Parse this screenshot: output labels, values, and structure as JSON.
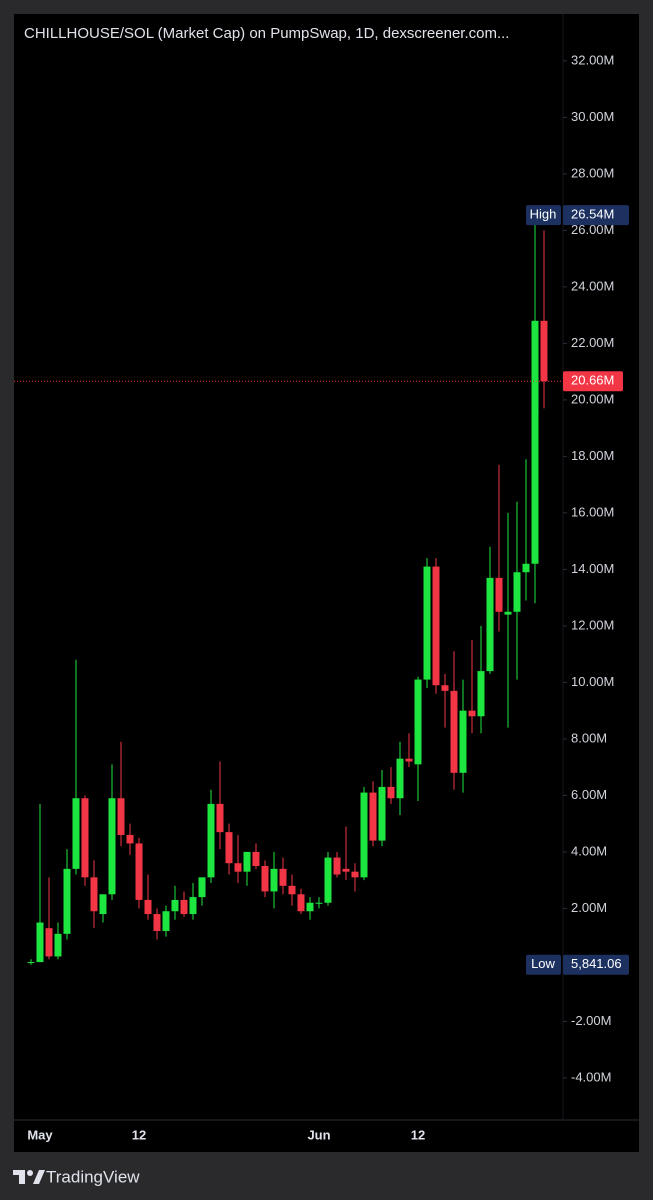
{
  "chart_data": {
    "type": "candlestick",
    "title": "CHILLHOUSE/SOL (Market Cap) on PumpSwap, 1D, dexscreener.com...",
    "categories": [
      null,
      "May",
      null,
      null,
      null,
      null,
      null,
      null,
      null,
      null,
      null,
      null,
      "12",
      null,
      null,
      null,
      null,
      null,
      null,
      null,
      null,
      null,
      null,
      null,
      null,
      null,
      null,
      null,
      null,
      null,
      null,
      null,
      "Jun",
      null,
      null,
      null,
      null,
      null,
      null,
      null,
      null,
      null,
      null,
      "12",
      null,
      null,
      null,
      null,
      null,
      null,
      null,
      null,
      null,
      null,
      null,
      null,
      null,
      null
    ],
    "open": [
      100000,
      100000,
      1300000,
      300000,
      1100000,
      3400000,
      5900000,
      3100000,
      1800000,
      2500000,
      5900000,
      4600000,
      4300000,
      2300000,
      1800000,
      1200000,
      1900000,
      2300000,
      1800000,
      2400000,
      3100000,
      5700000,
      4700000,
      3600000,
      3300000,
      4000000,
      3500000,
      2600000,
      3400000,
      2800000,
      2500000,
      1900000,
      2200000,
      2200000,
      3800000,
      3400000,
      3300000,
      3100000,
      6100000,
      4400000,
      6300000,
      5900000,
      7300000,
      7100000,
      10100000,
      14100000,
      9900000,
      9700000,
      6800000,
      9000000,
      8800000,
      10400000,
      13700000,
      12400000,
      12500000,
      13900000,
      14200000,
      22800000
    ],
    "high": [
      200000,
      5700000,
      3100000,
      1500000,
      4100000,
      10800000,
      6000000,
      3700000,
      2400000,
      7100000,
      7900000,
      5000000,
      4500000,
      3200000,
      2000000,
      2100000,
      2800000,
      2600000,
      2900000,
      3100000,
      6200000,
      7200000,
      5000000,
      4600000,
      4000000,
      4300000,
      3700000,
      4000000,
      3800000,
      3200000,
      2700000,
      2400000,
      2400000,
      4000000,
      4000000,
      4900000,
      3600000,
      6300000,
      6500000,
      6900000,
      7000000,
      7900000,
      8200000,
      10200000,
      14400000,
      14400000,
      10300000,
      11100000,
      10100000,
      11500000,
      12000000,
      14800000,
      17700000,
      16000000,
      16400000,
      17900000,
      26540000,
      26000000
    ],
    "low": [
      5841.06,
      100000,
      200000,
      200000,
      900000,
      3200000,
      2800000,
      1300000,
      1500000,
      2300000,
      4200000,
      3900000,
      2000000,
      1600000,
      900000,
      1000000,
      1600000,
      1700000,
      1600000,
      2100000,
      2900000,
      4100000,
      3200000,
      2900000,
      2800000,
      3400000,
      2400000,
      2000000,
      2500000,
      2100000,
      1800000,
      1600000,
      2000000,
      2100000,
      3100000,
      3000000,
      2600000,
      3000000,
      4200000,
      4200000,
      5700000,
      5300000,
      7000000,
      5800000,
      9800000,
      9600000,
      8400000,
      6200000,
      6100000,
      8200000,
      8200000,
      10300000,
      11800000,
      8400000,
      10100000,
      12900000,
      12800000,
      19700000
    ],
    "close": [
      100000,
      1500000,
      300000,
      1100000,
      3400000,
      5900000,
      3100000,
      1900000,
      2500000,
      5900000,
      4600000,
      4300000,
      2300000,
      1800000,
      1200000,
      1900000,
      2300000,
      1800000,
      2400000,
      3100000,
      5700000,
      4700000,
      3600000,
      3300000,
      4000000,
      3500000,
      2600000,
      3400000,
      2800000,
      2500000,
      1900000,
      2200000,
      2200000,
      3800000,
      3200000,
      3300000,
      3100000,
      6100000,
      4400000,
      6300000,
      5900000,
      7300000,
      7200000,
      10100000,
      14100000,
      9900000,
      9700000,
      6800000,
      9000000,
      8800000,
      10400000,
      13700000,
      12500000,
      12500000,
      13900000,
      14200000,
      22800000,
      20660000
    ],
    "up_color": "#1ee640",
    "down_color": "#f23645",
    "ylim": [
      -5490000,
      33660000
    ],
    "yticks": [
      {
        "value": -4000000,
        "label": "-4.00M"
      },
      {
        "value": -2000000,
        "label": "-2.00M"
      },
      {
        "value": 2000000,
        "label": "2.00M"
      },
      {
        "value": 4000000,
        "label": "4.00M"
      },
      {
        "value": 6000000,
        "label": "6.00M"
      },
      {
        "value": 8000000,
        "label": "8.00M"
      },
      {
        "value": 10000000,
        "label": "10.00M"
      },
      {
        "value": 12000000,
        "label": "12.00M"
      },
      {
        "value": 14000000,
        "label": "14.00M"
      },
      {
        "value": 16000000,
        "label": "16.00M"
      },
      {
        "value": 18000000,
        "label": "18.00M"
      },
      {
        "value": 20000000,
        "label": "20.00M"
      },
      {
        "value": 22000000,
        "label": "22.00M"
      },
      {
        "value": 24000000,
        "label": "24.00M"
      },
      {
        "value": 26000000,
        "label": "26.00M"
      },
      {
        "value": 28000000,
        "label": "28.00M"
      },
      {
        "value": 30000000,
        "label": "30.00M"
      },
      {
        "value": 32000000,
        "label": "32.00M"
      }
    ],
    "grid": false,
    "high_marker": {
      "label": "High",
      "value": 26540000,
      "value_label": "26.54M"
    },
    "low_marker": {
      "label": "Low",
      "value": 5841.06,
      "value_label": "5,841.06"
    },
    "last_price": {
      "value": 20660000,
      "label": "20.66M"
    }
  },
  "branding": "TradingView"
}
